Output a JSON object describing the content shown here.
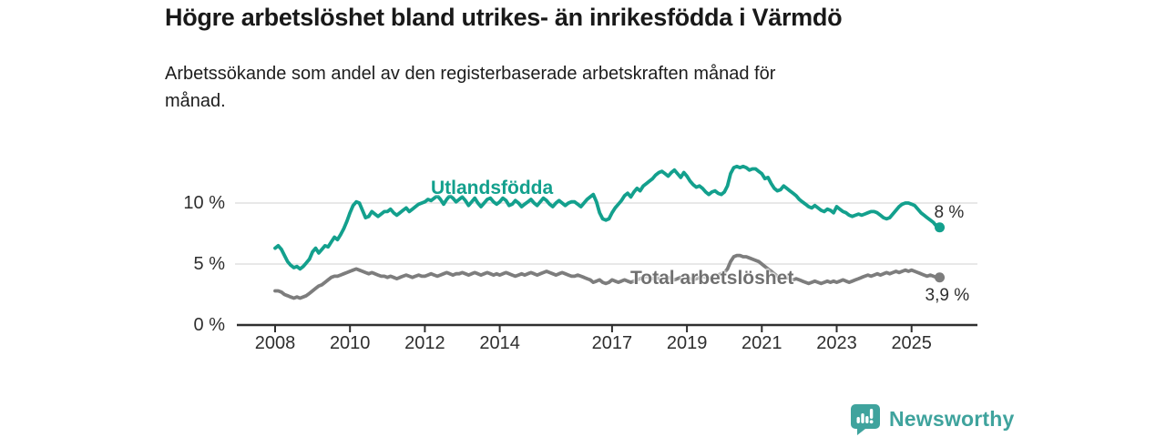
{
  "title": "Högre arbetslöshet bland utrikes- än inrikesfödda i Värmdö",
  "subtitle": "Arbetssökande som andel av den registerbaserade arbetskraften månad för månad.",
  "branding": {
    "logo_text": "Newsworthy",
    "logo_icon": "bar-chart-speech-bubble-icon",
    "logo_color": "#3fa39d"
  },
  "chart_data": {
    "type": "line",
    "title": "Högre arbetslöshet bland utrikes- än inrikesfödda i Värmdö",
    "subtitle": "Arbetssökande som andel av den registerbaserade arbetskraften månad för månad.",
    "unit": "percent",
    "x_start": "2008-01",
    "x_end": "2025-10",
    "x_step": "month",
    "x_ticks": [
      "2008",
      "2010",
      "2012",
      "2014",
      "2017",
      "2019",
      "2021",
      "2023",
      "2025"
    ],
    "y_ticks": [
      "0 %",
      "5 %",
      "10 %"
    ],
    "y_gridlines": [
      5,
      10
    ],
    "ylim": [
      0,
      14.5
    ],
    "grid": "horizontal",
    "legend": "inline-labels",
    "axis_color": "#2f2f2f",
    "gridline_color": "#d9d9d9",
    "series": [
      {
        "name": "Utlandsfödda",
        "color": "#13a08d",
        "end_label": "8 %",
        "end_value": 8.0,
        "values": [
          6.3,
          6.5,
          6.2,
          5.7,
          5.2,
          4.9,
          4.7,
          4.8,
          4.6,
          4.8,
          5.1,
          5.4,
          6.0,
          6.3,
          5.9,
          6.2,
          6.5,
          6.4,
          6.8,
          7.2,
          7.0,
          7.4,
          7.9,
          8.5,
          9.2,
          9.8,
          10.1,
          10.0,
          9.4,
          8.8,
          8.9,
          9.3,
          9.1,
          8.9,
          9.1,
          9.3,
          9.3,
          9.5,
          9.2,
          9.0,
          9.2,
          9.4,
          9.6,
          9.3,
          9.5,
          9.7,
          9.9,
          10.0,
          10.1,
          10.3,
          10.2,
          10.4,
          10.6,
          10.3,
          9.9,
          10.3,
          10.6,
          10.4,
          10.1,
          10.3,
          10.5,
          10.2,
          9.8,
          10.1,
          10.4,
          10.0,
          9.7,
          10.0,
          10.3,
          10.4,
          10.1,
          9.9,
          10.1,
          10.4,
          10.2,
          9.8,
          9.9,
          10.2,
          10.0,
          9.7,
          9.9,
          10.1,
          10.3,
          10.0,
          9.8,
          10.1,
          10.4,
          10.2,
          9.9,
          9.7,
          10.0,
          10.2,
          10.0,
          9.8,
          10.0,
          10.1,
          10.1,
          9.9,
          9.7,
          10.0,
          10.3,
          10.5,
          10.7,
          10.1,
          9.2,
          8.7,
          8.6,
          8.7,
          9.2,
          9.6,
          9.9,
          10.2,
          10.6,
          10.8,
          10.5,
          10.9,
          11.2,
          11.0,
          11.4,
          11.6,
          11.8,
          12.0,
          12.3,
          12.5,
          12.6,
          12.4,
          12.2,
          12.5,
          12.7,
          12.4,
          12.1,
          12.5,
          12.2,
          11.8,
          11.5,
          11.3,
          11.4,
          11.2,
          10.9,
          10.7,
          10.9,
          11.0,
          10.8,
          10.7,
          10.9,
          11.4,
          12.4,
          12.9,
          13.0,
          12.9,
          13.0,
          12.9,
          12.7,
          12.8,
          12.8,
          12.6,
          12.4,
          12.0,
          12.1,
          11.6,
          11.2,
          11.0,
          11.1,
          11.4,
          11.2,
          11.0,
          10.8,
          10.6,
          10.3,
          10.1,
          9.9,
          9.7,
          9.6,
          9.8,
          9.6,
          9.4,
          9.3,
          9.5,
          9.4,
          9.2,
          9.7,
          9.5,
          9.3,
          9.2,
          9.0,
          8.9,
          9.0,
          9.1,
          9.0,
          9.1,
          9.2,
          9.3,
          9.3,
          9.2,
          9.0,
          8.8,
          8.7,
          8.8,
          9.1,
          9.4,
          9.7,
          9.9,
          10.0,
          10.0,
          9.9,
          9.8,
          9.5,
          9.2,
          9.0,
          8.8,
          8.6,
          8.4,
          8.1,
          8.0
        ]
      },
      {
        "name": "Total arbetslöshet",
        "color": "#7d7d7d",
        "label_color": "#707070",
        "end_label": "3,9 %",
        "end_value": 3.9,
        "values": [
          2.8,
          2.8,
          2.7,
          2.5,
          2.4,
          2.3,
          2.2,
          2.3,
          2.2,
          2.3,
          2.4,
          2.6,
          2.8,
          3.0,
          3.2,
          3.3,
          3.5,
          3.7,
          3.9,
          4.0,
          4.0,
          4.1,
          4.2,
          4.3,
          4.4,
          4.5,
          4.6,
          4.5,
          4.4,
          4.3,
          4.2,
          4.3,
          4.2,
          4.1,
          4.0,
          4.0,
          3.9,
          4.0,
          3.9,
          3.8,
          3.9,
          4.0,
          4.1,
          4.0,
          3.9,
          4.0,
          4.1,
          4.0,
          4.0,
          4.1,
          4.2,
          4.1,
          4.0,
          4.1,
          4.2,
          4.3,
          4.2,
          4.1,
          4.2,
          4.2,
          4.3,
          4.2,
          4.1,
          4.2,
          4.3,
          4.2,
          4.1,
          4.2,
          4.3,
          4.2,
          4.1,
          4.2,
          4.1,
          4.2,
          4.3,
          4.2,
          4.1,
          4.0,
          4.1,
          4.2,
          4.1,
          4.2,
          4.3,
          4.2,
          4.1,
          4.2,
          4.3,
          4.4,
          4.3,
          4.2,
          4.1,
          4.2,
          4.3,
          4.2,
          4.1,
          4.0,
          4.0,
          4.1,
          4.0,
          3.9,
          3.8,
          3.7,
          3.5,
          3.6,
          3.7,
          3.5,
          3.4,
          3.5,
          3.7,
          3.6,
          3.5,
          3.6,
          3.7,
          3.6,
          3.5,
          3.6,
          3.7,
          3.8,
          3.9,
          4.0,
          3.9,
          3.8,
          3.9,
          3.8,
          3.7,
          3.8,
          3.9,
          3.8,
          3.7,
          3.8,
          3.9,
          3.8,
          3.9,
          3.8,
          3.7,
          3.8,
          3.9,
          4.0,
          3.9,
          3.8,
          3.9,
          4.0,
          4.1,
          4.2,
          4.3,
          4.6,
          5.2,
          5.6,
          5.7,
          5.7,
          5.6,
          5.6,
          5.5,
          5.4,
          5.3,
          5.2,
          5.0,
          4.8,
          4.6,
          4.4,
          4.2,
          4.0,
          3.9,
          4.0,
          3.9,
          3.8,
          3.7,
          3.8,
          3.7,
          3.6,
          3.5,
          3.4,
          3.5,
          3.6,
          3.5,
          3.4,
          3.5,
          3.6,
          3.5,
          3.6,
          3.5,
          3.6,
          3.7,
          3.6,
          3.5,
          3.6,
          3.7,
          3.8,
          3.9,
          4.0,
          4.1,
          4.0,
          4.1,
          4.2,
          4.1,
          4.2,
          4.3,
          4.2,
          4.3,
          4.4,
          4.3,
          4.4,
          4.5,
          4.4,
          4.5,
          4.4,
          4.3,
          4.2,
          4.1,
          4.0,
          4.1,
          4.0,
          3.9,
          3.9
        ]
      }
    ]
  }
}
